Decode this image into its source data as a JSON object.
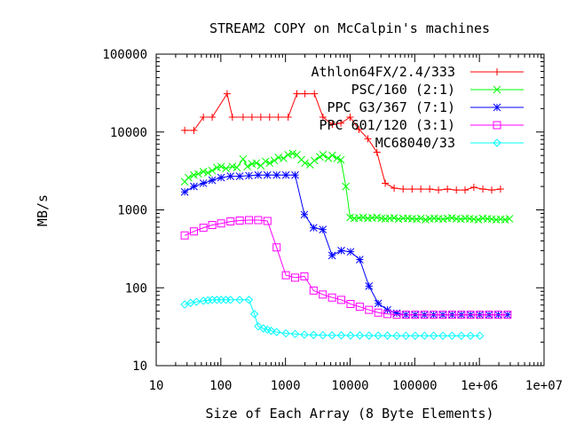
{
  "chart_data": {
    "type": "line",
    "title": "STREAM2 COPY on McCalpin's machines",
    "xlabel": "Size of Each Array (8 Byte Elements)",
    "ylabel": "MB/s",
    "xscale": "log",
    "yscale": "log",
    "xlim": [
      10,
      10000000
    ],
    "ylim": [
      10,
      100000
    ],
    "xticks": [
      {
        "value": 10,
        "label": "10"
      },
      {
        "value": 100,
        "label": "100"
      },
      {
        "value": 1000,
        "label": "1000"
      },
      {
        "value": 10000,
        "label": "10000"
      },
      {
        "value": 100000,
        "label": "100000"
      },
      {
        "value": 1000000,
        "label": "1e+06"
      },
      {
        "value": 10000000,
        "label": "1e+07"
      }
    ],
    "yticks": [
      {
        "value": 10,
        "label": "10"
      },
      {
        "value": 100,
        "label": "100"
      },
      {
        "value": 1000,
        "label": "1000"
      },
      {
        "value": 10000,
        "label": "10000"
      },
      {
        "value": 100000,
        "label": "100000"
      }
    ],
    "grid": false,
    "legend": "top-right",
    "series": [
      {
        "name": "Athlon64FX/2.4/333",
        "color": "#ff0000",
        "marker": "plus",
        "x": [
          27.6,
          38.3,
          53.7,
          73.5,
          125,
          151,
          221,
          303,
          415,
          568,
          778,
          1100,
          1500,
          2000,
          2800,
          3800,
          5300,
          7200,
          10000,
          13700,
          18800,
          26000,
          35000,
          48000,
          66000,
          91000,
          124000,
          170000,
          233000,
          320000,
          440000,
          600000,
          820000,
          1130000,
          1550000,
          2120000
        ],
        "y": [
          10500,
          10500,
          15500,
          15500,
          31000,
          15500,
          15500,
          15500,
          15500,
          15500,
          15500,
          15500,
          31000,
          31000,
          31000,
          15500,
          12500,
          13000,
          15500,
          10800,
          8200,
          5500,
          2200,
          1900,
          1850,
          1850,
          1850,
          1850,
          1800,
          1850,
          1800,
          1800,
          1950,
          1850,
          1800,
          1850
        ]
      },
      {
        "name": "PSC/160 (2:1)",
        "color": "#00ff00",
        "marker": "x",
        "x": [
          27.6,
          31.6,
          38.3,
          44.7,
          53.7,
          63.1,
          73.5,
          87.1,
          101,
          120,
          151,
          177,
          221,
          257,
          303,
          355,
          415,
          492,
          568,
          672,
          778,
          933,
          1100,
          1290,
          1500,
          1760,
          2000,
          2400,
          2800,
          3400,
          3800,
          4600,
          5300,
          6300,
          7200,
          8600,
          10000,
          11600,
          13700,
          15900,
          18800,
          21900,
          26000,
          30500,
          35000,
          41000,
          48000,
          56000,
          66000,
          78000,
          91000,
          107000,
          124000,
          147000,
          170000,
          200000,
          233000,
          275000,
          320000,
          376000,
          440000,
          515000,
          600000,
          706000,
          820000,
          965000,
          1130000,
          1330000,
          1550000,
          1820000,
          2120000,
          2500000,
          2920000
        ],
        "y": [
          2300,
          2600,
          2800,
          2900,
          3100,
          3000,
          3200,
          3500,
          3600,
          3400,
          3600,
          3500,
          4500,
          3600,
          3900,
          4000,
          3700,
          4200,
          4000,
          4300,
          4700,
          4600,
          5100,
          5300,
          5100,
          4400,
          4000,
          3800,
          4300,
          4800,
          5100,
          4600,
          5000,
          4600,
          4400,
          2000,
          800,
          780,
          790,
          800,
          780,
          790,
          800,
          780,
          770,
          780,
          790,
          760,
          780,
          780,
          770,
          760,
          780,
          750,
          770,
          780,
          770,
          760,
          780,
          790,
          770,
          760,
          780,
          770,
          760,
          750,
          780,
          770,
          760,
          750,
          760,
          750,
          770
        ]
      },
      {
        "name": "PPC G3/367 (7:1)",
        "color": "#0000ff",
        "marker": "star",
        "x": [
          27.6,
          38.3,
          53.7,
          73.5,
          101,
          141,
          196,
          272,
          378,
          525,
          730,
          1015,
          1410,
          1960,
          2720,
          3780,
          5260,
          7300,
          10150,
          14100,
          19600,
          27200,
          37800,
          52600,
          73000,
          101500,
          141000,
          196000,
          272000,
          378000,
          525000,
          730000,
          1015000,
          1410000,
          1960000,
          2720000
        ],
        "y": [
          1700,
          2000,
          2200,
          2400,
          2600,
          2700,
          2700,
          2750,
          2800,
          2800,
          2800,
          2800,
          2800,
          870,
          590,
          560,
          260,
          300,
          290,
          230,
          105,
          63,
          52,
          47,
          45,
          45,
          45,
          45,
          45,
          45,
          45,
          45,
          45,
          45,
          45,
          45
        ]
      },
      {
        "name": "PPC 601/120 (3:1)",
        "color": "#ff00ff",
        "marker": "square",
        "x": [
          27.6,
          38.3,
          53.7,
          73.5,
          101,
          141,
          196,
          272,
          378,
          525,
          730,
          1015,
          1410,
          1960,
          2720,
          3780,
          5260,
          7300,
          10150,
          14100,
          19600,
          27200,
          37800,
          52600,
          73000,
          101500,
          141000,
          196000,
          272000,
          378000,
          525000,
          730000,
          1015000,
          1410000,
          1960000,
          2720000
        ],
        "y": [
          470,
          530,
          590,
          640,
          670,
          710,
          730,
          740,
          740,
          720,
          330,
          145,
          135,
          140,
          92,
          82,
          75,
          70,
          62,
          57,
          52,
          48,
          46,
          45,
          45,
          45,
          45,
          45,
          45,
          45,
          45,
          45,
          45,
          45,
          45,
          45
        ]
      },
      {
        "name": "MC68040/33",
        "color": "#00ffff",
        "marker": "diamond",
        "x": [
          27.6,
          34,
          42,
          53.7,
          63.1,
          73.5,
          87.1,
          101,
          120,
          141,
          196,
          272,
          330,
          378,
          456,
          525,
          600,
          730,
          1015,
          1410,
          1960,
          2720,
          3780,
          5260,
          7300,
          10150,
          14100,
          19600,
          27200,
          37800,
          52600,
          73000,
          101500,
          141000,
          196000,
          272000,
          378000,
          525000,
          730000,
          1015000
        ],
        "y": [
          61,
          64,
          66,
          68,
          69,
          70,
          70,
          70,
          70,
          70,
          70,
          70,
          46,
          32,
          30,
          29,
          28,
          27,
          26,
          25.5,
          25,
          24.8,
          24.6,
          24.5,
          24.5,
          24.4,
          24.4,
          24.3,
          24.3,
          24.3,
          24.2,
          24.2,
          24.2,
          24.2,
          24.2,
          24.2,
          24.2,
          24.2,
          24.2,
          24.2
        ]
      }
    ]
  }
}
